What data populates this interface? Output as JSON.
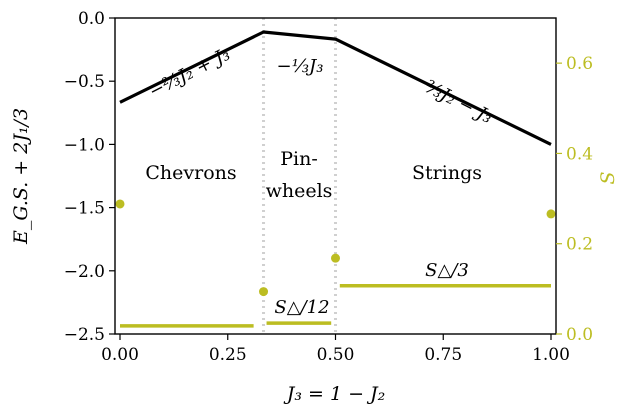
{
  "chart_data": {
    "type": "line",
    "xlabel": "J₃ = 1 − J₂",
    "ylabel_left": "E_G.S. + 2J₁/3",
    "ylabel_right": "S",
    "xlim": [
      0.0,
      1.0
    ],
    "ylim_left": [
      -2.5,
      0.0
    ],
    "ylim_right": [
      0.0,
      0.7
    ],
    "x_ticks": [
      "0.00",
      "0.25",
      "0.50",
      "0.75",
      "1.00"
    ],
    "y_ticks_left": [
      "0.0",
      "−0.5",
      "−1.0",
      "−1.5",
      "−2.0",
      "−2.5"
    ],
    "y_ticks_right": [
      "0.0",
      "0.2",
      "0.4",
      "0.6"
    ],
    "left_tick_values": [
      0.0,
      -0.5,
      -1.0,
      -1.5,
      -2.0,
      -2.5
    ],
    "right_tick_values": [
      0.0,
      0.2,
      0.4,
      0.6
    ],
    "x_tick_values": [
      0.0,
      0.25,
      0.5,
      0.75,
      1.0
    ],
    "energy_line": {
      "color": "#000000",
      "x": [
        0.0,
        0.333,
        0.5,
        1.0
      ],
      "y": [
        -0.667,
        -0.111,
        -0.167,
        -1.0
      ]
    },
    "phase_boundaries": [
      0.333,
      0.5
    ],
    "entropy_segments": {
      "color": "#bcbd22",
      "segments": [
        {
          "x0": 0.0,
          "x1": 0.31,
          "value": 0.018
        },
        {
          "x0": 0.34,
          "x1": 0.49,
          "value": 0.024
        },
        {
          "x0": 0.51,
          "x1": 1.0,
          "value": 0.107
        }
      ]
    },
    "entropy_points": {
      "color": "#bcbd22",
      "x": [
        0.0,
        0.333,
        0.5,
        1.0
      ],
      "y": [
        0.288,
        0.094,
        0.168,
        0.266
      ]
    },
    "regions": {
      "chevrons": "Chevrons",
      "pinwheels_1": "Pin-",
      "pinwheels_2": "wheels",
      "strings": "Strings"
    },
    "formulas": {
      "chevrons": "−⅔J₂ + J₃",
      "pinwheels": "−⅓J₃",
      "strings": "⅔J₂ − J₃"
    },
    "entropy_labels": {
      "pinwheels": "S△/12",
      "strings": "S△/3"
    }
  }
}
